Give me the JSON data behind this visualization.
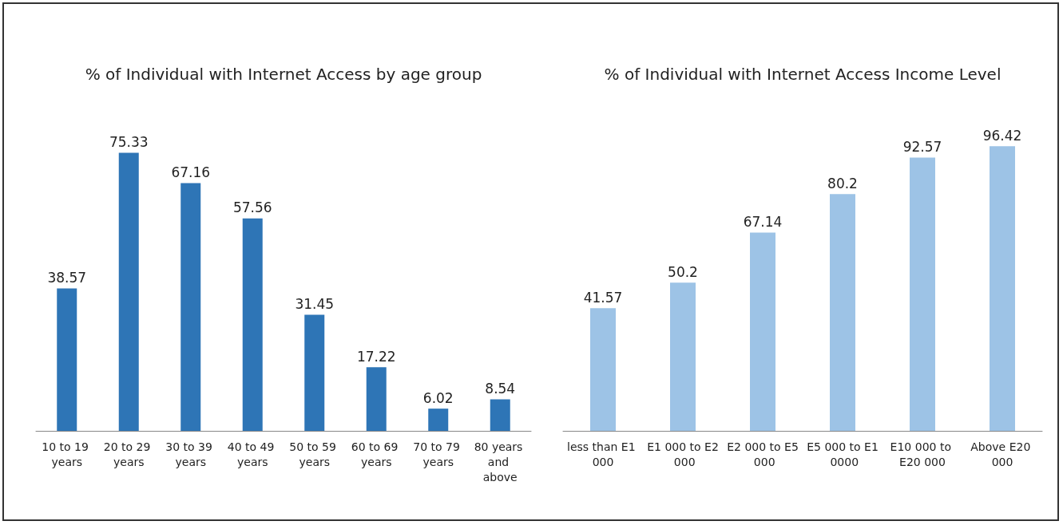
{
  "chart_data": [
    {
      "type": "bar",
      "title": "% of Individual with Internet Access by age group",
      "categories": [
        "10 to 19 years",
        "20 to 29 years",
        "30 to 39 years",
        "40 to 49 years",
        "50 to 59 years",
        "60 to 69 years",
        "70 to 79 years",
        "80 years and above"
      ],
      "values": [
        38.57,
        75.33,
        67.16,
        57.56,
        31.45,
        17.22,
        6.02,
        8.54
      ],
      "color": "#2e75b6",
      "data_labels": true
    },
    {
      "type": "bar",
      "title": "% of Individual with Internet Access Income Level",
      "categories": [
        "less than E1 000",
        "E1 000 to E2 000",
        "E2 000 to E5 000",
        "E5 000 to E1 0000",
        "E10 000 to E20 000",
        "Above E20 000"
      ],
      "values": [
        41.57,
        50.2,
        67.14,
        80.2,
        92.57,
        96.42
      ],
      "color": "#9dc3e6",
      "data_labels": true
    }
  ]
}
